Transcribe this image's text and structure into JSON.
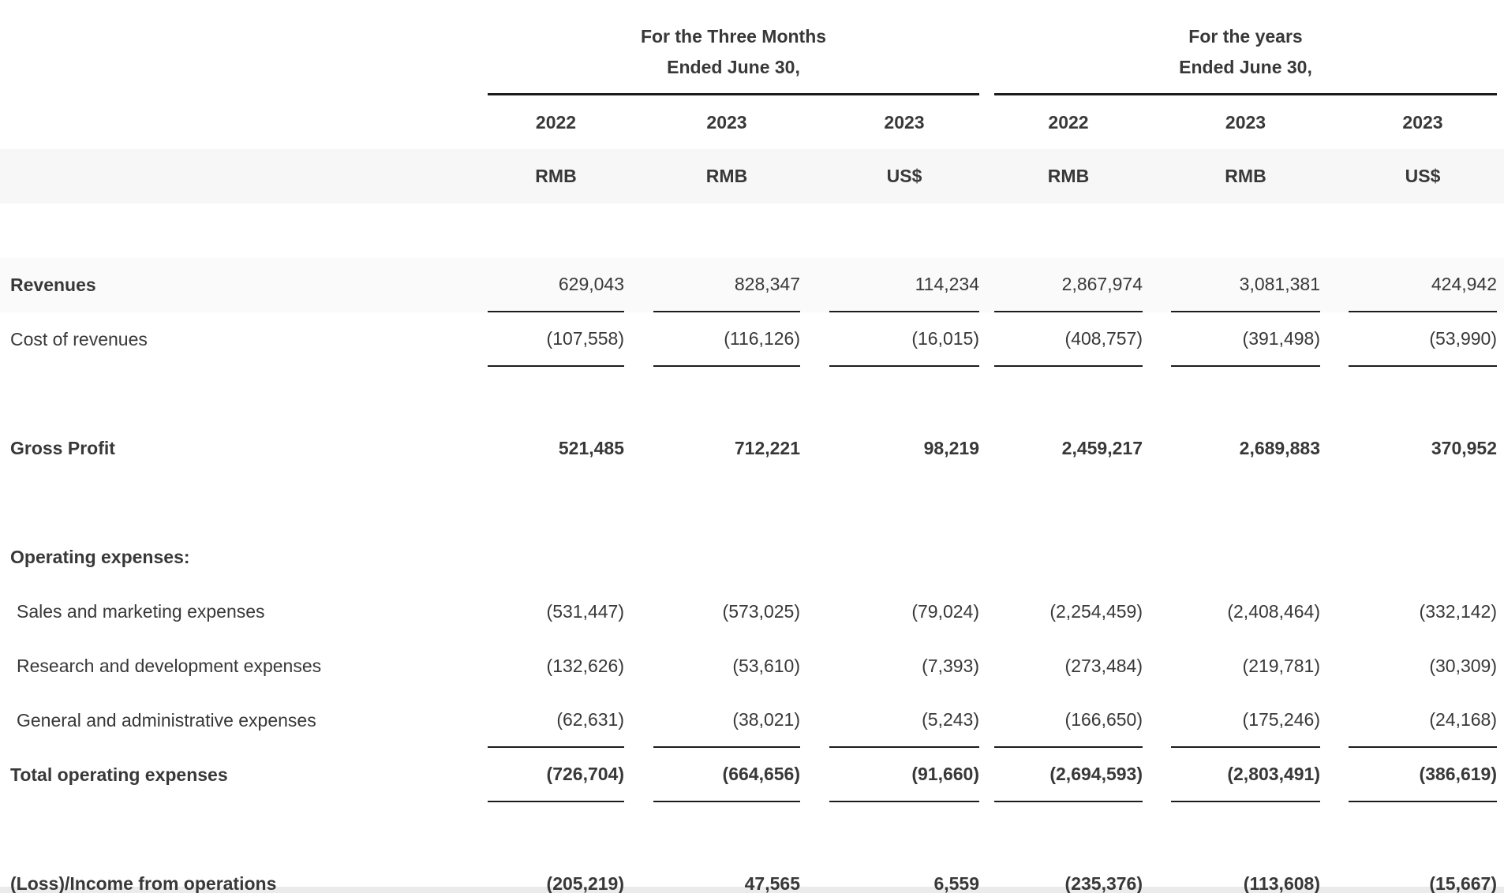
{
  "colors": {
    "text": "#383838",
    "rule": "#1c1c1c",
    "band": "#f7f7f8",
    "band_light": "#fafafa",
    "strip": "#ebebeb"
  },
  "header": {
    "group1_title_line1": "For the Three Months",
    "group1_title_line2": "Ended June 30,",
    "group2_title_line1": "For the years",
    "group2_title_line2": "Ended June 30,",
    "years": [
      "2022",
      "2023",
      "2023",
      "2022",
      "2023",
      "2023"
    ],
    "currencies": [
      "RMB",
      "RMB",
      "US$",
      "RMB",
      "RMB",
      "US$"
    ]
  },
  "table": {
    "rows": [
      {
        "spacer": true,
        "label": "",
        "values": [
          "",
          "",
          "",
          "",
          "",
          ""
        ]
      },
      {
        "label": "Revenues",
        "style": "label-bold",
        "underline": true,
        "band": true,
        "values": [
          "629,043",
          "828,347",
          "114,234",
          "2,867,974",
          "3,081,381",
          "424,942"
        ]
      },
      {
        "label": "Cost of revenues",
        "underline": true,
        "values": [
          "(107,558)",
          "(116,126)",
          "(16,015)",
          "(408,757)",
          "(391,498)",
          "(53,990)"
        ]
      },
      {
        "spacer": true,
        "label": "",
        "values": [
          "",
          "",
          "",
          "",
          "",
          ""
        ]
      },
      {
        "label": "Gross Profit",
        "style": "bold",
        "values": [
          "521,485",
          "712,221",
          "98,219",
          "2,459,217",
          "2,689,883",
          "370,952"
        ]
      },
      {
        "spacer": true,
        "label": "",
        "values": [
          "",
          "",
          "",
          "",
          "",
          ""
        ]
      },
      {
        "label": "Operating expenses:",
        "style": "label-bold",
        "values": [
          "",
          "",
          "",
          "",
          "",
          ""
        ]
      },
      {
        "label": "Sales and marketing expenses",
        "indent": true,
        "values": [
          "(531,447)",
          "(573,025)",
          "(79,024)",
          "(2,254,459)",
          "(2,408,464)",
          "(332,142)"
        ]
      },
      {
        "label": "Research and development expenses",
        "indent": true,
        "values": [
          "(132,626)",
          "(53,610)",
          "(7,393)",
          "(273,484)",
          "(219,781)",
          "(30,309)"
        ]
      },
      {
        "label": "General and administrative expenses",
        "indent": true,
        "underline": true,
        "values": [
          "(62,631)",
          "(38,021)",
          "(5,243)",
          "(166,650)",
          "(175,246)",
          "(24,168)"
        ]
      },
      {
        "label": "Total operating expenses",
        "style": "bold",
        "underline": true,
        "values": [
          "(726,704)",
          "(664,656)",
          "(91,660)",
          "(2,694,593)",
          "(2,803,491)",
          "(386,619)"
        ]
      },
      {
        "spacer": true,
        "label": "",
        "values": [
          "",
          "",
          "",
          "",
          "",
          ""
        ]
      },
      {
        "label": "(Loss)/Income from operations",
        "style": "bold",
        "values": [
          "(205,219)",
          "47,565",
          "6,559",
          "(235,376)",
          "(113,608)",
          "(15,667)"
        ]
      }
    ]
  }
}
